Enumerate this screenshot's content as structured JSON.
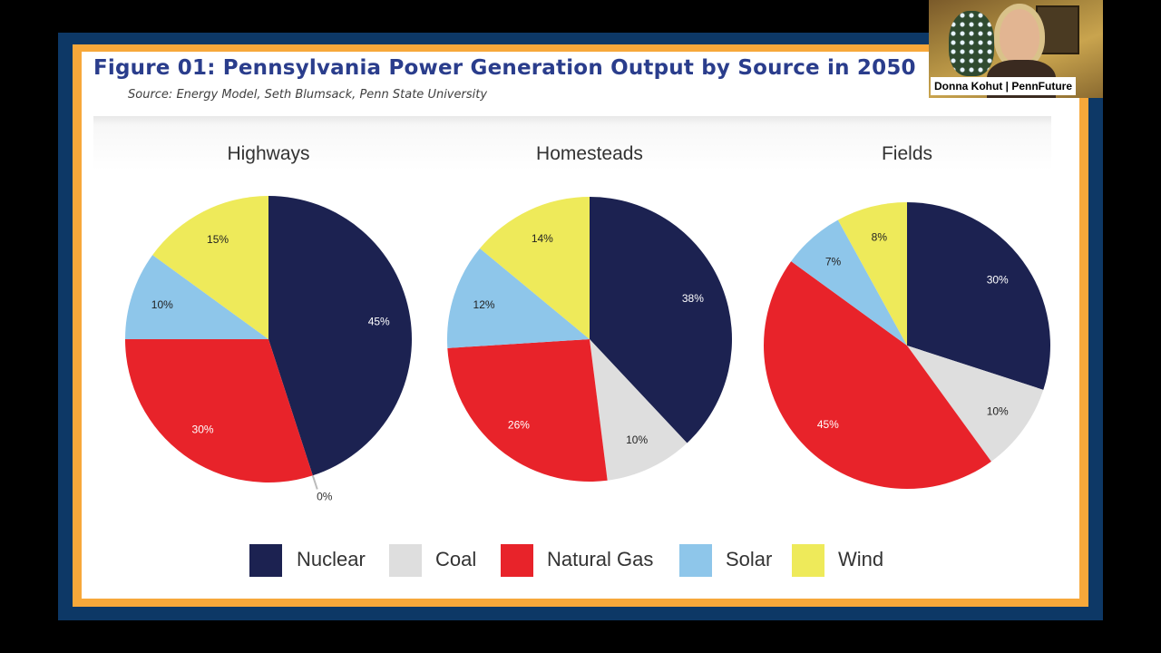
{
  "figure": {
    "title": "Figure 01: Pennsylvania Power Generation Output by Source in 2050",
    "source": "Source: Energy Model, Seth Blumsack, Penn State University"
  },
  "webcam": {
    "name": "Donna Kohut | PennFuture"
  },
  "colors": {
    "Nuclear": "#1c2251",
    "Coal": "#dedede",
    "Natural Gas": "#e8232a",
    "Solar": "#8ec6ea",
    "Wind": "#eeea5a"
  },
  "chart_data": {
    "type": "pie",
    "sources": [
      "Nuclear",
      "Coal",
      "Natural Gas",
      "Solar",
      "Wind"
    ],
    "legend_position": "bottom",
    "pies": [
      {
        "title": "Highways",
        "slices": [
          {
            "source": "Nuclear",
            "value": 45,
            "label": "45%"
          },
          {
            "source": "Coal",
            "value": 0,
            "label": "0%"
          },
          {
            "source": "Natural Gas",
            "value": 30,
            "label": "30%"
          },
          {
            "source": "Solar",
            "value": 10,
            "label": "10%"
          },
          {
            "source": "Wind",
            "value": 15,
            "label": "15%"
          }
        ]
      },
      {
        "title": "Homesteads",
        "slices": [
          {
            "source": "Nuclear",
            "value": 38,
            "label": "38%"
          },
          {
            "source": "Coal",
            "value": 10,
            "label": "10%"
          },
          {
            "source": "Natural Gas",
            "value": 26,
            "label": "26%"
          },
          {
            "source": "Solar",
            "value": 12,
            "label": "12%"
          },
          {
            "source": "Wind",
            "value": 14,
            "label": "14%"
          }
        ]
      },
      {
        "title": "Fields",
        "slices": [
          {
            "source": "Nuclear",
            "value": 30,
            "label": "30%"
          },
          {
            "source": "Coal",
            "value": 10,
            "label": "10%"
          },
          {
            "source": "Natural Gas",
            "value": 45,
            "label": "45%"
          },
          {
            "source": "Solar",
            "value": 7,
            "label": "7%"
          },
          {
            "source": "Wind",
            "value": 8,
            "label": "8%"
          }
        ]
      }
    ]
  }
}
